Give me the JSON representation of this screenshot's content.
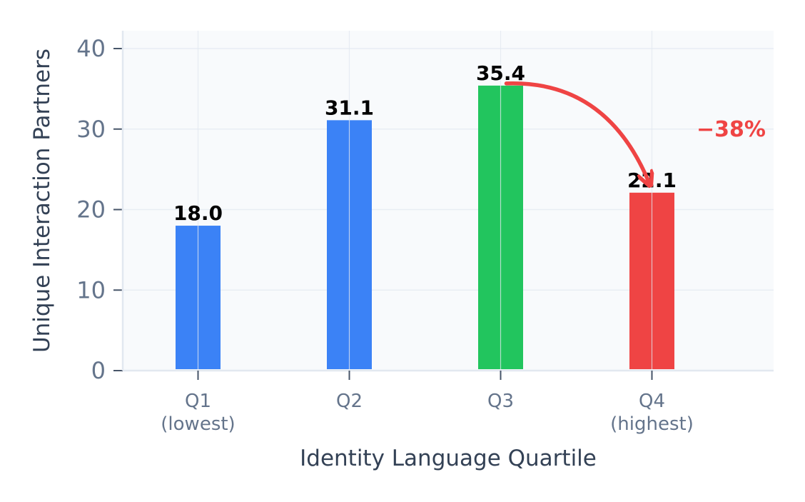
{
  "chart_data": {
    "type": "bar",
    "title": "",
    "xlabel": "Identity Language Quartile",
    "ylabel": "Unique Interaction Partners",
    "categories": [
      "Q1\n(lowest)",
      "Q2",
      "Q3",
      "Q4\n(highest)"
    ],
    "values": [
      18.0,
      31.1,
      35.4,
      22.1
    ],
    "value_labels": [
      "18.0",
      "31.1",
      "35.4",
      "22.1"
    ],
    "bar_colors": [
      "#3b82f6",
      "#3b82f6",
      "#22c55e",
      "#ef4444"
    ],
    "ylim": [
      0,
      42
    ],
    "yticks": [
      0,
      10,
      20,
      30,
      40
    ],
    "grid": true,
    "annotation": {
      "text": "−38%",
      "from_category": "Q3",
      "to_category": "Q4",
      "color": "#ef4444"
    }
  }
}
